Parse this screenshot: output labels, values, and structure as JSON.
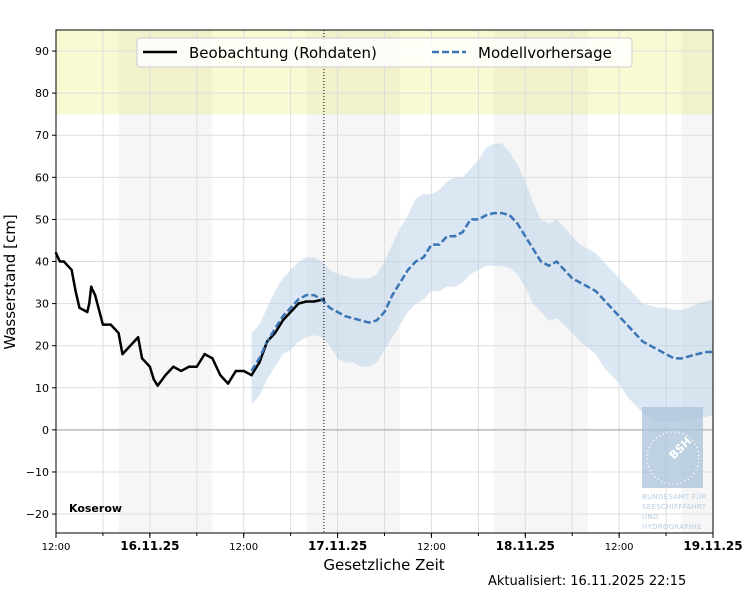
{
  "chart_data": {
    "type": "line",
    "station": "Koserow",
    "xlabel": "Gesetzliche Zeit",
    "ylabel": "Wasserstand [cm]",
    "xlim": [
      "2025-11-15T12:00",
      "2025-11-19T00:00"
    ],
    "ylim": [
      -24.5,
      95
    ],
    "yticks": [
      -20,
      -10,
      0,
      10,
      20,
      30,
      40,
      50,
      60,
      70,
      80,
      90
    ],
    "xticks": [
      {
        "t": "2025-11-15T12:00",
        "label": "12:00",
        "major": false
      },
      {
        "t": "2025-11-16T00:00",
        "label": "16.11.25",
        "major": true
      },
      {
        "t": "2025-11-16T12:00",
        "label": "12:00",
        "major": false
      },
      {
        "t": "2025-11-17T00:00",
        "label": "17.11.25",
        "major": true
      },
      {
        "t": "2025-11-17T12:00",
        "label": "12:00",
        "major": false
      },
      {
        "t": "2025-11-18T00:00",
        "label": "18.11.25",
        "major": true
      },
      {
        "t": "2025-11-18T12:00",
        "label": "12:00",
        "major": false
      },
      {
        "t": "2025-11-19T00:00",
        "label": "19.11.25",
        "major": true
      }
    ],
    "grid": true,
    "legend_position": "top-center",
    "warning_band": {
      "from": 75,
      "color": "#fafad2"
    },
    "night_bands": [
      [
        "2025-11-15T20:00",
        "2025-11-16T08:00"
      ],
      [
        "2025-11-16T20:00",
        "2025-11-17T08:00"
      ],
      [
        "2025-11-17T20:00",
        "2025-11-18T08:00"
      ],
      [
        "2025-11-18T20:00",
        "2025-11-19T00:00"
      ]
    ],
    "now": "2025-11-16T22:15",
    "series": [
      {
        "name": "Beobachtung (Rohdaten)",
        "color": "#000000",
        "style": "solid",
        "points": [
          [
            "2025-11-15T12:00",
            42
          ],
          [
            "2025-11-15T12:30",
            40
          ],
          [
            "2025-11-15T13:00",
            40
          ],
          [
            "2025-11-15T14:00",
            38
          ],
          [
            "2025-11-15T14:30",
            33
          ],
          [
            "2025-11-15T15:00",
            29
          ],
          [
            "2025-11-15T16:00",
            28
          ],
          [
            "2025-11-15T16:15",
            30
          ],
          [
            "2025-11-15T16:30",
            34
          ],
          [
            "2025-11-15T17:00",
            32
          ],
          [
            "2025-11-15T18:00",
            25
          ],
          [
            "2025-11-15T19:00",
            25
          ],
          [
            "2025-11-15T20:00",
            23
          ],
          [
            "2025-11-15T20:30",
            18
          ],
          [
            "2025-11-15T21:00",
            19
          ],
          [
            "2025-11-15T22:00",
            21
          ],
          [
            "2025-11-15T22:30",
            22
          ],
          [
            "2025-11-15T23:00",
            17
          ],
          [
            "2025-11-16T00:00",
            15
          ],
          [
            "2025-11-16T00:30",
            12
          ],
          [
            "2025-11-16T01:00",
            10.5
          ],
          [
            "2025-11-16T02:00",
            13
          ],
          [
            "2025-11-16T03:00",
            15
          ],
          [
            "2025-11-16T04:00",
            14
          ],
          [
            "2025-11-16T05:00",
            15
          ],
          [
            "2025-11-16T06:00",
            15
          ],
          [
            "2025-11-16T07:00",
            18
          ],
          [
            "2025-11-16T08:00",
            17
          ],
          [
            "2025-11-16T09:00",
            13
          ],
          [
            "2025-11-16T10:00",
            11
          ],
          [
            "2025-11-16T11:00",
            14
          ],
          [
            "2025-11-16T12:00",
            14
          ],
          [
            "2025-11-16T13:00",
            13
          ],
          [
            "2025-11-16T14:00",
            16
          ],
          [
            "2025-11-16T15:00",
            21
          ],
          [
            "2025-11-16T16:00",
            23
          ],
          [
            "2025-11-16T17:00",
            26
          ],
          [
            "2025-11-16T18:00",
            28
          ],
          [
            "2025-11-16T19:00",
            30
          ],
          [
            "2025-11-16T20:00",
            30.5
          ],
          [
            "2025-11-16T21:00",
            30.5
          ],
          [
            "2025-11-16T22:15",
            31
          ]
        ]
      },
      {
        "name": "Modellvorhersage",
        "color": "#3a75b5",
        "style": "dashed",
        "band_color": "#b8d0e6",
        "points": [
          [
            "2025-11-16T13:00",
            14,
            6,
            23
          ],
          [
            "2025-11-16T14:00",
            17,
            8,
            25
          ],
          [
            "2025-11-16T15:00",
            21,
            12,
            29
          ],
          [
            "2025-11-16T16:00",
            24,
            15,
            33
          ],
          [
            "2025-11-16T17:00",
            27,
            18,
            36
          ],
          [
            "2025-11-16T18:00",
            29,
            19,
            38
          ],
          [
            "2025-11-16T19:00",
            31,
            21,
            40
          ],
          [
            "2025-11-16T20:00",
            32,
            22,
            41
          ],
          [
            "2025-11-16T21:00",
            32,
            22.5,
            41
          ],
          [
            "2025-11-16T22:00",
            31,
            22,
            40
          ],
          [
            "2025-11-16T23:00",
            29,
            20,
            38
          ],
          [
            "2025-11-17T00:00",
            28,
            17,
            37
          ],
          [
            "2025-11-17T01:00",
            27,
            16,
            36.5
          ],
          [
            "2025-11-17T02:00",
            26.5,
            16,
            36
          ],
          [
            "2025-11-17T03:00",
            26,
            15,
            36
          ],
          [
            "2025-11-17T04:00",
            25.5,
            15,
            36
          ],
          [
            "2025-11-17T05:00",
            26,
            16,
            37
          ],
          [
            "2025-11-17T06:00",
            28,
            19,
            40
          ],
          [
            "2025-11-17T07:00",
            32,
            22,
            44
          ],
          [
            "2025-11-17T08:00",
            35,
            25,
            48
          ],
          [
            "2025-11-17T09:00",
            38,
            28,
            51
          ],
          [
            "2025-11-17T10:00",
            40,
            30,
            55
          ],
          [
            "2025-11-17T11:00",
            41,
            31,
            56
          ],
          [
            "2025-11-17T12:00",
            44,
            33,
            56
          ],
          [
            "2025-11-17T13:00",
            44,
            33,
            57
          ],
          [
            "2025-11-17T14:00",
            46,
            34,
            59
          ],
          [
            "2025-11-17T15:00",
            46,
            34,
            60
          ],
          [
            "2025-11-17T16:00",
            47,
            35,
            60
          ],
          [
            "2025-11-17T17:00",
            50,
            37,
            62
          ],
          [
            "2025-11-17T18:00",
            50,
            38,
            64
          ],
          [
            "2025-11-17T19:00",
            51,
            39,
            67
          ],
          [
            "2025-11-17T20:00",
            51.5,
            39,
            68
          ],
          [
            "2025-11-17T21:00",
            51.5,
            39,
            68
          ],
          [
            "2025-11-17T22:00",
            51,
            38.5,
            66
          ],
          [
            "2025-11-17T23:00",
            49,
            37,
            63
          ],
          [
            "2025-11-18T00:00",
            46,
            34,
            59
          ],
          [
            "2025-11-18T01:00",
            43,
            30,
            54
          ],
          [
            "2025-11-18T02:00",
            40,
            28,
            50
          ],
          [
            "2025-11-18T03:00",
            39,
            26,
            49
          ],
          [
            "2025-11-18T04:00",
            40,
            26.5,
            50
          ],
          [
            "2025-11-18T05:00",
            38,
            25,
            48
          ],
          [
            "2025-11-18T06:00",
            36,
            23,
            46
          ],
          [
            "2025-11-18T07:00",
            35,
            21,
            44
          ],
          [
            "2025-11-18T08:00",
            34,
            19.5,
            43
          ],
          [
            "2025-11-18T09:00",
            33,
            18,
            42
          ],
          [
            "2025-11-18T10:00",
            31,
            15,
            40
          ],
          [
            "2025-11-18T11:00",
            29,
            13,
            38
          ],
          [
            "2025-11-18T12:00",
            27,
            11,
            36
          ],
          [
            "2025-11-18T13:00",
            25,
            8,
            34
          ],
          [
            "2025-11-18T14:00",
            23,
            6,
            32
          ],
          [
            "2025-11-18T15:00",
            21,
            4,
            30
          ],
          [
            "2025-11-18T16:00",
            20,
            3,
            29.5
          ],
          [
            "2025-11-18T17:00",
            19,
            2,
            29
          ],
          [
            "2025-11-18T18:00",
            18,
            2,
            29
          ],
          [
            "2025-11-18T19:00",
            17,
            2,
            28.5
          ],
          [
            "2025-11-18T20:00",
            17,
            2,
            28.5
          ],
          [
            "2025-11-18T21:00",
            17.5,
            3,
            29
          ],
          [
            "2025-11-18T22:00",
            18,
            3,
            30
          ],
          [
            "2025-11-18T23:00",
            18.5,
            3,
            30.5
          ],
          [
            "2025-11-19T00:00",
            18.5,
            3.5,
            31
          ]
        ]
      }
    ]
  },
  "logo": {
    "text": "BSH",
    "caption": [
      "BUNDESAMT FÜR",
      "SEESCHIFFFAHRT",
      "UND",
      "HYDROGRAPHIE"
    ]
  },
  "updated": "Aktualisiert: 16.11.2025 22:15"
}
